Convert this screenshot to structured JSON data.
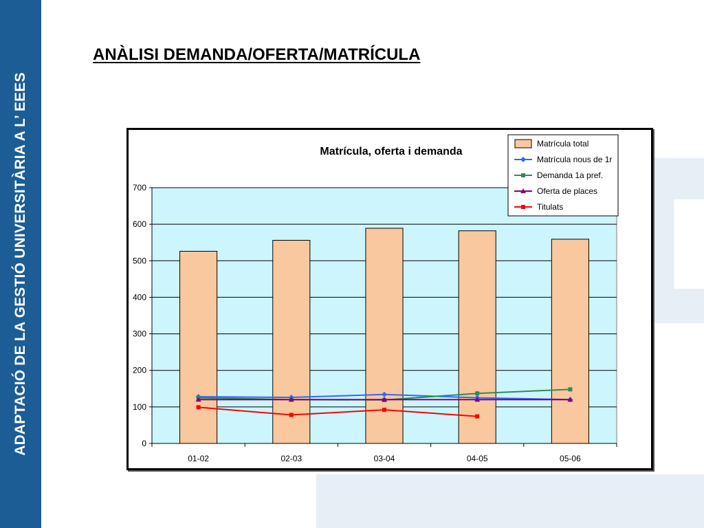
{
  "sidebar": {
    "text": "ADAPTACIÓ DE LA GESTIÓ UNIVERSITÀRIA A L’ EEES"
  },
  "slide": {
    "title": "ANÀLISI DEMANDA/OFERTA/MATRÍCULA"
  },
  "colors": {
    "sidebar": "#1c5d96",
    "plot_background": "#ccf5fe",
    "bars": "#f9c89e",
    "matricula_nous": "#3366ff",
    "demanda": "#2e8b57",
    "oferta": "#800080",
    "titulats": "#ff0000"
  },
  "chart_data": {
    "type": "bar",
    "title": "Matrícula, oferta i demanda",
    "xlabel": "",
    "ylabel": "",
    "categories": [
      "01-02",
      "02-03",
      "03-04",
      "04-05",
      "05-06"
    ],
    "ylim": [
      0,
      700
    ],
    "yticks": [
      0,
      100,
      200,
      300,
      400,
      500,
      600,
      700
    ],
    "grid": true,
    "legend_position": "top-right",
    "series": [
      {
        "name": "Matrícula total",
        "type": "bar",
        "values": [
          526,
          556,
          589,
          582,
          559
        ]
      },
      {
        "name": "Matrícula nous de 1r",
        "type": "line",
        "marker": "diamond",
        "values": [
          128,
          126,
          134,
          125,
          120
        ]
      },
      {
        "name": "Demanda 1a pref.",
        "type": "line",
        "marker": "square",
        "values": [
          125,
          120,
          119,
          137,
          148
        ]
      },
      {
        "name": "Oferta de places",
        "type": "line",
        "marker": "triangle",
        "values": [
          120,
          120,
          120,
          120,
          120
        ]
      },
      {
        "name": "Titulats",
        "type": "line",
        "marker": "square",
        "values": [
          99,
          78,
          92,
          74,
          null
        ]
      }
    ]
  }
}
